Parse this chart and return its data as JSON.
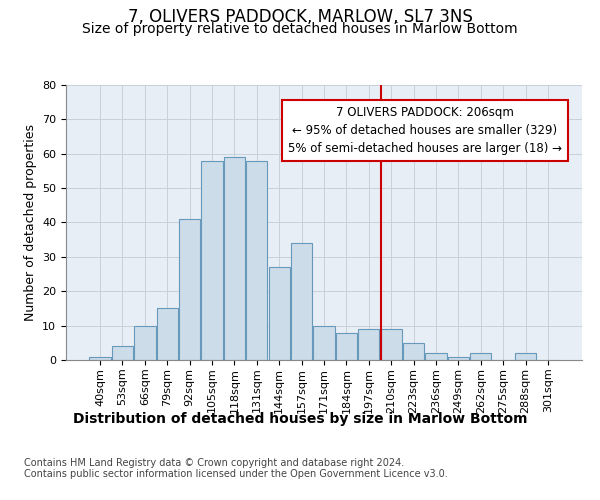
{
  "title": "7, OLIVERS PADDOCK, MARLOW, SL7 3NS",
  "subtitle": "Size of property relative to detached houses in Marlow Bottom",
  "xlabel": "Distribution of detached houses by size in Marlow Bottom",
  "ylabel": "Number of detached properties",
  "bar_labels": [
    "40sqm",
    "53sqm",
    "66sqm",
    "79sqm",
    "92sqm",
    "105sqm",
    "118sqm",
    "131sqm",
    "144sqm",
    "157sqm",
    "171sqm",
    "184sqm",
    "197sqm",
    "210sqm",
    "223sqm",
    "236sqm",
    "249sqm",
    "262sqm",
    "275sqm",
    "288sqm",
    "301sqm"
  ],
  "bar_values": [
    1,
    4,
    10,
    15,
    41,
    58,
    59,
    58,
    27,
    34,
    10,
    8,
    9,
    9,
    5,
    2,
    1,
    2,
    0,
    2,
    0
  ],
  "bar_color": "#ccdce8",
  "bar_edge_color": "#6699bb",
  "vline_color": "#cc0000",
  "annotation_line1": "7 OLIVERS PADDOCK: 206sqm",
  "annotation_line2": "← 95% of detached houses are smaller (329)",
  "annotation_line3": "5% of semi-detached houses are larger (18) →",
  "annotation_box_color": "#ffffff",
  "annotation_box_edge": "#cc0000",
  "ylim": [
    0,
    80
  ],
  "yticks": [
    0,
    10,
    20,
    30,
    40,
    50,
    60,
    70,
    80
  ],
  "grid_color": "#c8d0d8",
  "bg_color": "#e8eef5",
  "footer": "Contains HM Land Registry data © Crown copyright and database right 2024.\nContains public sector information licensed under the Open Government Licence v3.0.",
  "title_fontsize": 12,
  "subtitle_fontsize": 10,
  "xlabel_fontsize": 10,
  "ylabel_fontsize": 9,
  "tick_fontsize": 8,
  "annotation_fontsize": 8.5,
  "footer_fontsize": 7
}
